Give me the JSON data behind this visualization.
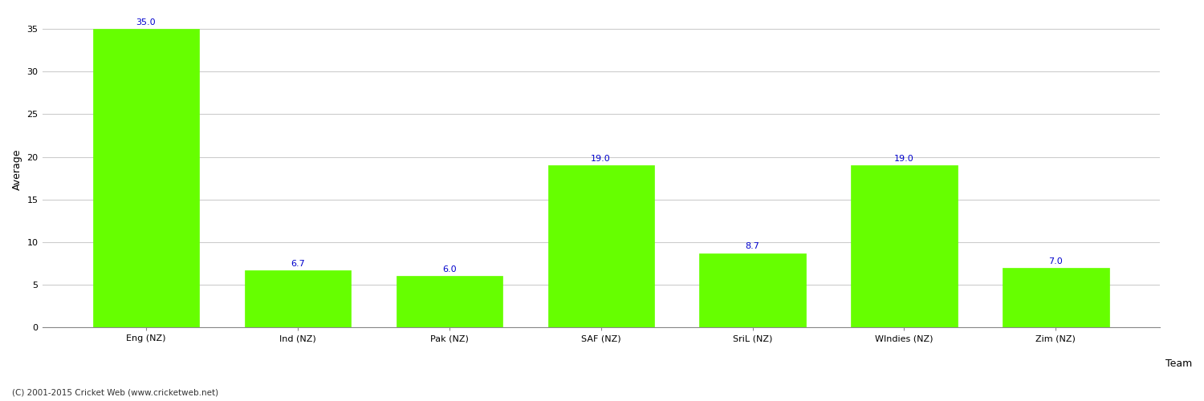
{
  "categories": [
    "Eng (NZ)",
    "Ind (NZ)",
    "Pak (NZ)",
    "SAF (NZ)",
    "SriL (NZ)",
    "WIndies (NZ)",
    "Zim (NZ)"
  ],
  "values": [
    35.0,
    6.7,
    6.0,
    19.0,
    8.7,
    19.0,
    7.0
  ],
  "bar_color": "#66ff00",
  "bar_edge_color": "#66ff00",
  "xlabel": "Team",
  "ylabel": "Average",
  "ylim": [
    0,
    37
  ],
  "yticks": [
    0,
    5,
    10,
    15,
    20,
    25,
    30,
    35
  ],
  "label_color": "#0000cc",
  "label_fontsize": 8,
  "axis_label_fontsize": 9,
  "tick_fontsize": 8,
  "grid_color": "#cccccc",
  "background_color": "#ffffff",
  "footer_text": "(C) 2001-2015 Cricket Web (www.cricketweb.net)",
  "footer_fontsize": 7.5
}
